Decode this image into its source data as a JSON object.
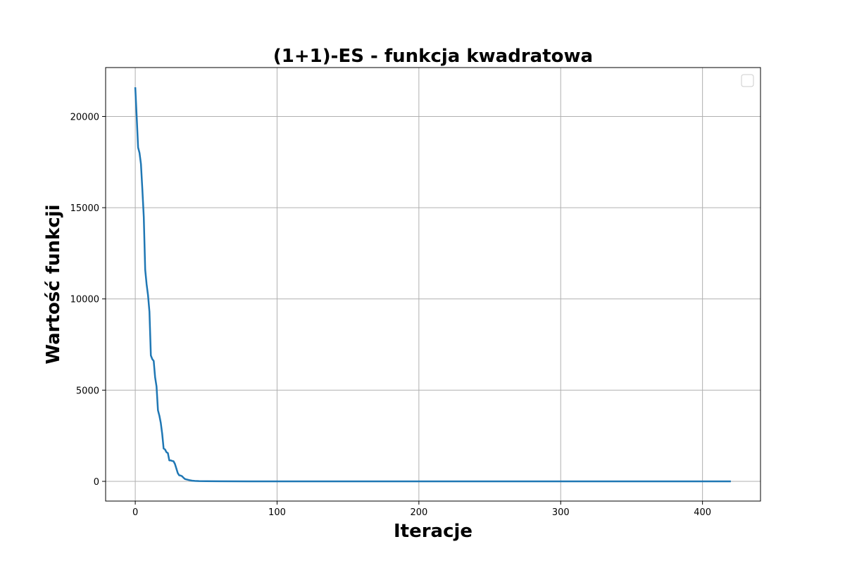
{
  "chart_data": {
    "type": "line",
    "title": "(1+1)-ES - funkcja kwadratowa",
    "xlabel": "Iteracje",
    "ylabel": "Wartość funkcji",
    "xlim": [
      -20.9,
      440.9
    ],
    "ylim": [
      -1080,
      22680
    ],
    "xticks": [
      0,
      100,
      200,
      300,
      400
    ],
    "yticks": [
      0,
      5000,
      10000,
      15000,
      20000
    ],
    "grid": true,
    "legend": "top-right",
    "line_color": "#1f77b4",
    "series": [
      {
        "x": [
          0,
          1,
          2,
          3,
          4,
          5,
          6,
          7,
          8,
          9,
          10,
          11,
          12,
          13,
          14,
          15,
          16,
          17,
          18,
          19,
          20,
          21,
          22,
          23,
          24,
          25,
          26,
          27,
          28,
          29,
          30,
          31,
          32,
          33,
          34,
          35,
          36,
          37,
          38,
          40,
          42,
          45,
          50,
          60,
          80,
          100,
          150,
          200,
          250,
          300,
          350,
          400,
          420
        ],
        "y": [
          21600,
          20000,
          18300,
          18000,
          17400,
          16000,
          14500,
          11600,
          10800,
          10200,
          9300,
          6900,
          6700,
          6600,
          5700,
          5200,
          3900,
          3600,
          3200,
          2600,
          1800,
          1750,
          1600,
          1550,
          1150,
          1150,
          1120,
          1100,
          950,
          700,
          450,
          330,
          320,
          280,
          200,
          130,
          110,
          90,
          70,
          40,
          25,
          15,
          8,
          3,
          1,
          0,
          0,
          0,
          0,
          0,
          0,
          0,
          0
        ]
      }
    ]
  }
}
